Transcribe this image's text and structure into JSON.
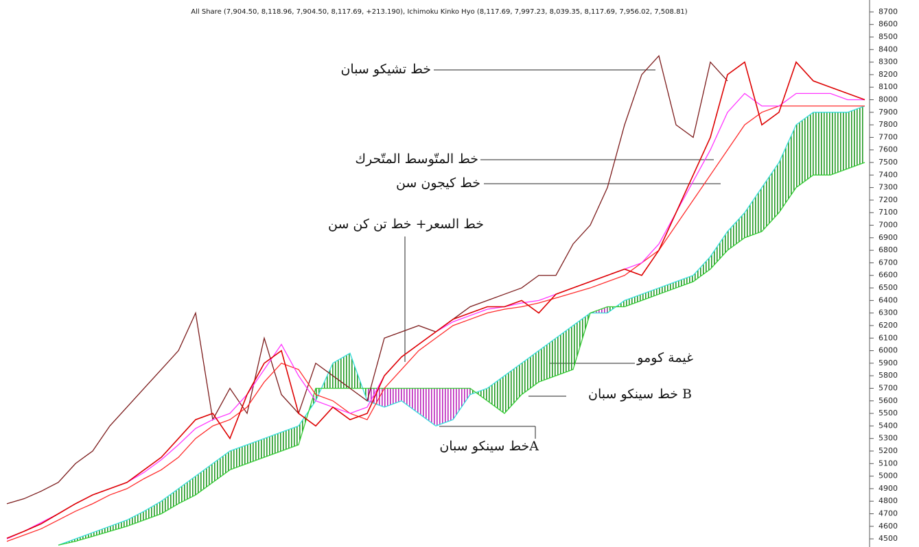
{
  "chart_data": {
    "type": "line",
    "title": "All Share (7,904.50, 8,118.96, 7,904.50, 8,117.69, +213.190), Ichimoku Kinko Hyo (8,117.69, 7,997.23, 8,039.35, 8,117.69, 7,956.02, 7,508.81)",
    "annotations": [
      "خط تشيكو سبان",
      "خط المتّوسط المتّحرك",
      "خط كيجون سن",
      "خط السعر+ خط تن كن سن",
      "غيمة كومو",
      "خط سينكو سبان B",
      "خط سينكو سبانA"
    ],
    "ylim": [
      4435,
      8795
    ],
    "yticks": [
      4500,
      4600,
      4700,
      4800,
      4900,
      5000,
      5100,
      5200,
      5300,
      5400,
      5500,
      5600,
      5700,
      5800,
      5900,
      6000,
      6100,
      6200,
      6300,
      6400,
      6500,
      6600,
      6700,
      6800,
      6900,
      7000,
      7100,
      7200,
      7300,
      7400,
      7500,
      7600,
      7700,
      7800,
      7900,
      8000,
      8100,
      8200,
      8300,
      8400,
      8500,
      8600,
      8700
    ],
    "series": [
      {
        "color": "#33dddd",
        "values": [
          null,
          null,
          null,
          4450,
          4500,
          4550,
          4600,
          4650,
          4720,
          4800,
          4900,
          5000,
          5100,
          5200,
          5250,
          5300,
          5350,
          5400,
          5600,
          5900,
          5980,
          5600,
          5550,
          5600,
          5500,
          5400,
          5450,
          5650,
          5700,
          5800,
          5900,
          6000,
          6100,
          6200,
          6300,
          6300,
          6400,
          6450,
          6500,
          6550,
          6600,
          6750,
          6950,
          7100,
          7300,
          7500,
          7800,
          7900,
          7900,
          7900,
          7950
        ]
      },
      {
        "color": "#33cc33",
        "values": [
          null,
          null,
          null,
          4450,
          4480,
          4520,
          4560,
          4600,
          4650,
          4700,
          4780,
          4850,
          4950,
          5050,
          5100,
          5150,
          5200,
          5250,
          5700,
          5700,
          5700,
          5700,
          5700,
          5700,
          5700,
          5700,
          5700,
          5700,
          5600,
          5500,
          5650,
          5750,
          5800,
          5850,
          6300,
          6350,
          6350,
          6400,
          6450,
          6500,
          6550,
          6650,
          6800,
          6900,
          6950,
          7100,
          7300,
          7400,
          7400,
          7450,
          7500
        ]
      },
      {
        "color": "#7b1a1a",
        "values": [
          4780,
          4820,
          4880,
          4950,
          5100,
          5200,
          5400,
          5550,
          5700,
          5850,
          6000,
          6300,
          5450,
          5700,
          5500,
          6100,
          5650,
          5500,
          5900,
          5800,
          5700,
          5600,
          6100,
          6150,
          6200,
          6150,
          6250,
          6350,
          6400,
          6450,
          6500,
          6600,
          6600,
          6850,
          7000,
          7300,
          7800,
          8200,
          8350,
          7800,
          7700,
          8300,
          8150,
          null,
          null,
          null,
          null,
          null,
          null,
          null,
          null
        ]
      },
      {
        "color": "#ff2a2a",
        "values": [
          4480,
          4530,
          4580,
          4650,
          4720,
          4780,
          4850,
          4900,
          4980,
          5050,
          5150,
          5300,
          5400,
          5450,
          5550,
          5750,
          5900,
          5850,
          5650,
          5600,
          5500,
          5450,
          5700,
          5850,
          6000,
          6100,
          6200,
          6250,
          6300,
          6330,
          6350,
          6380,
          6420,
          6460,
          6500,
          6550,
          6600,
          6700,
          6800,
          7000,
          7200,
          7400,
          7600,
          7800,
          7900,
          7950,
          7950,
          7950,
          7950,
          7950,
          7950
        ]
      },
      {
        "color": "#ff33ff",
        "values": [
          4500,
          4560,
          4630,
          4700,
          4780,
          4850,
          4900,
          4950,
          5030,
          5130,
          5250,
          5380,
          5450,
          5500,
          5650,
          5850,
          6050,
          5800,
          5600,
          5550,
          5500,
          5550,
          5800,
          5950,
          6050,
          6150,
          6230,
          6280,
          6330,
          6350,
          6380,
          6400,
          6450,
          6500,
          6550,
          6600,
          6650,
          6700,
          6850,
          7100,
          7350,
          7600,
          7900,
          8050,
          7950,
          7950,
          8050,
          8050,
          8050,
          8000,
          8000
        ]
      },
      {
        "color": "#dd0000",
        "values": [
          4505,
          4560,
          4620,
          4700,
          4780,
          4850,
          4900,
          4950,
          5050,
          5150,
          5300,
          5450,
          5500,
          5300,
          5650,
          5900,
          6000,
          5500,
          5400,
          5550,
          5450,
          5500,
          5800,
          5950,
          6050,
          6150,
          6250,
          6300,
          6350,
          6350,
          6400,
          6300,
          6450,
          6500,
          6550,
          6600,
          6650,
          6600,
          6800,
          7100,
          7400,
          7700,
          8200,
          8300,
          7800,
          7900,
          8300,
          8150,
          8100,
          8050,
          8000
        ]
      }
    ]
  }
}
